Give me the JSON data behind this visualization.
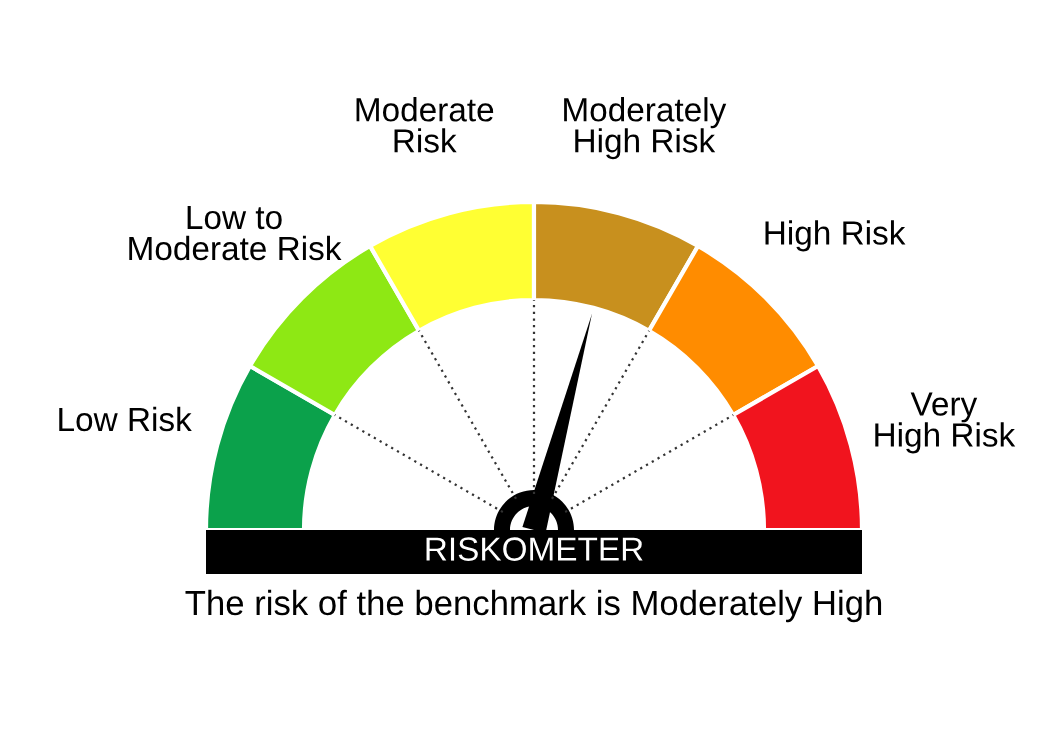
{
  "chart_data": {
    "type": "donut",
    "categories": [
      "Low Risk",
      "Low to\nModerate Risk",
      "Moderate\nRisk",
      "Moderately\nHigh Risk",
      "High Risk",
      "Very\nHigh Risk"
    ],
    "values": [
      16.67,
      16.67,
      16.66,
      16.67,
      16.67,
      16.66
    ],
    "colors": [
      "#0ba14b",
      "#8ee814",
      "#ffff33",
      "#c8901e",
      "#ff8c00",
      "#f1141e"
    ],
    "needle": "Moderately\nHigh Risk",
    "annotations": [
      "RISKOMETER",
      "The risk of the benchmark is Moderately High"
    ]
  }
}
